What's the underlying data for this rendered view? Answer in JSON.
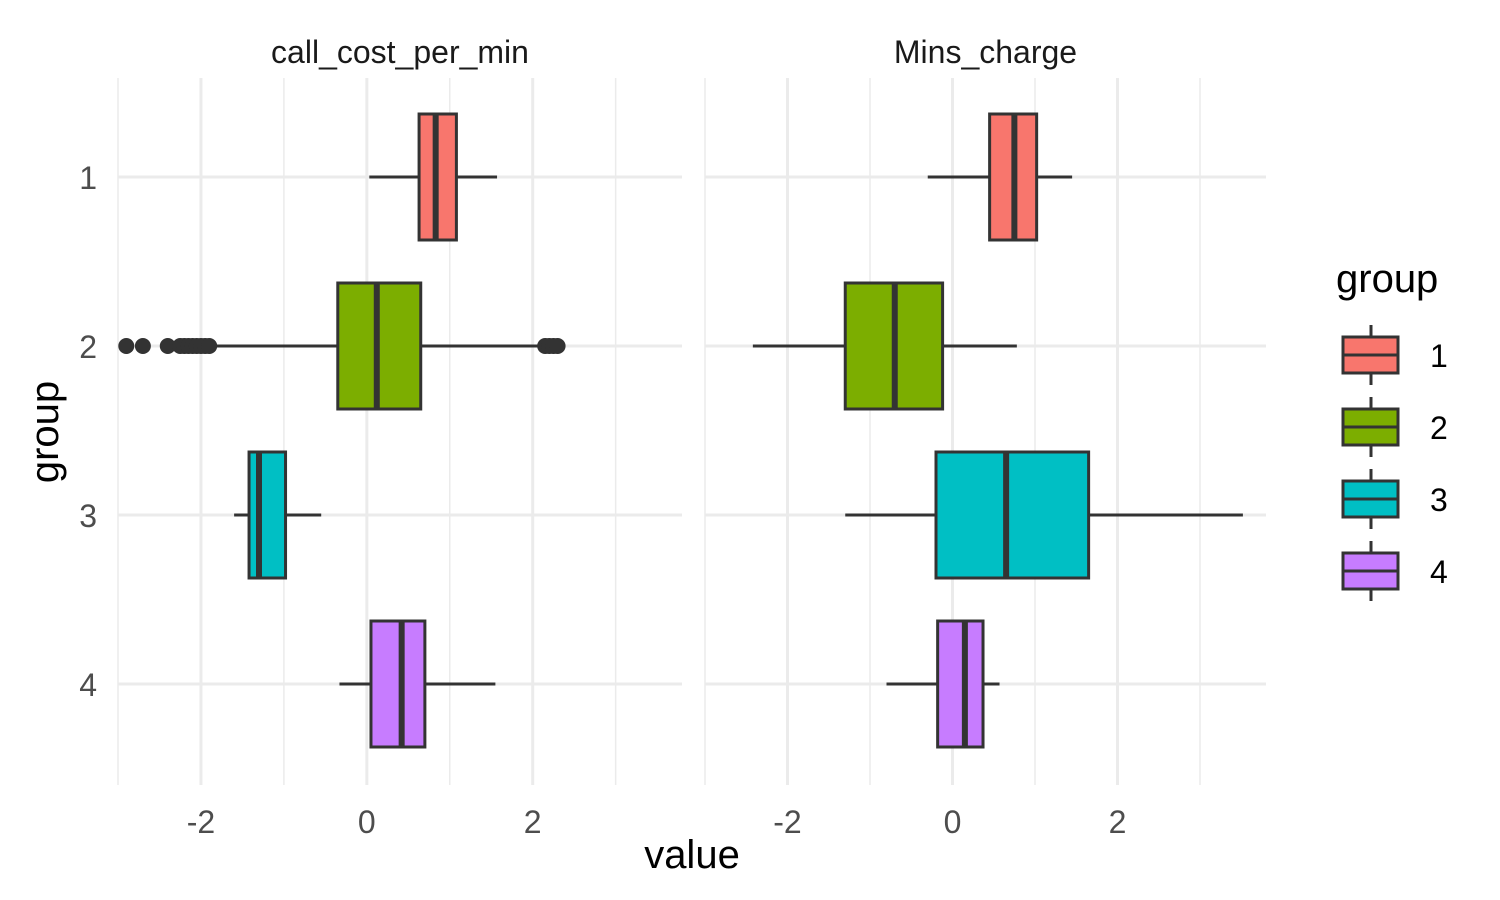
{
  "chart_data": {
    "type": "boxplot",
    "orientation": "horizontal",
    "xlabel": "value",
    "ylabel": "group",
    "xlim": [
      -3.0,
      3.8
    ],
    "x_ticks": [
      -2,
      0,
      2
    ],
    "x_tick_labels": [
      "-2",
      "0",
      "2"
    ],
    "y_categories": [
      "1",
      "2",
      "3",
      "4"
    ],
    "grid": true,
    "legend": {
      "title": "group",
      "position": "right",
      "entries": [
        {
          "label": "1",
          "color": "#F8766D"
        },
        {
          "label": "2",
          "color": "#7CAE00"
        },
        {
          "label": "3",
          "color": "#00BFC4"
        },
        {
          "label": "4",
          "color": "#C77CFF"
        }
      ]
    },
    "facets": [
      {
        "title": "call_cost_per_min",
        "boxes": [
          {
            "group": "1",
            "whisker_low": 0.03,
            "q1": 0.63,
            "median": 0.83,
            "q3": 1.08,
            "whisker_high": 1.57,
            "outliers": []
          },
          {
            "group": "2",
            "whisker_low": -1.85,
            "q1": -0.35,
            "median": 0.12,
            "q3": 0.65,
            "whisker_high": 2.1,
            "outliers": [
              -2.9,
              -2.7,
              -2.4,
              -2.25,
              -2.2,
              -2.15,
              -2.1,
              -2.05,
              -2.0,
              -1.95,
              -1.9,
              2.15,
              2.2,
              2.25,
              2.3
            ]
          },
          {
            "group": "3",
            "whisker_low": -1.6,
            "q1": -1.42,
            "median": -1.3,
            "q3": -0.98,
            "whisker_high": -0.55,
            "outliers": []
          },
          {
            "group": "4",
            "whisker_low": -0.33,
            "q1": 0.05,
            "median": 0.42,
            "q3": 0.7,
            "whisker_high": 1.55,
            "outliers": []
          }
        ]
      },
      {
        "title": "Mins_charge",
        "boxes": [
          {
            "group": "1",
            "whisker_low": -0.3,
            "q1": 0.45,
            "median": 0.75,
            "q3": 1.02,
            "whisker_high": 1.45,
            "outliers": []
          },
          {
            "group": "2",
            "whisker_low": -2.42,
            "q1": -1.3,
            "median": -0.7,
            "q3": -0.12,
            "whisker_high": 0.78,
            "outliers": []
          },
          {
            "group": "3",
            "whisker_low": -1.3,
            "q1": -0.2,
            "median": 0.65,
            "q3": 1.65,
            "whisker_high": 3.52,
            "outliers": []
          },
          {
            "group": "4",
            "whisker_low": -0.8,
            "q1": -0.18,
            "median": 0.15,
            "q3": 0.37,
            "whisker_high": 0.57,
            "outliers": []
          }
        ]
      }
    ]
  }
}
